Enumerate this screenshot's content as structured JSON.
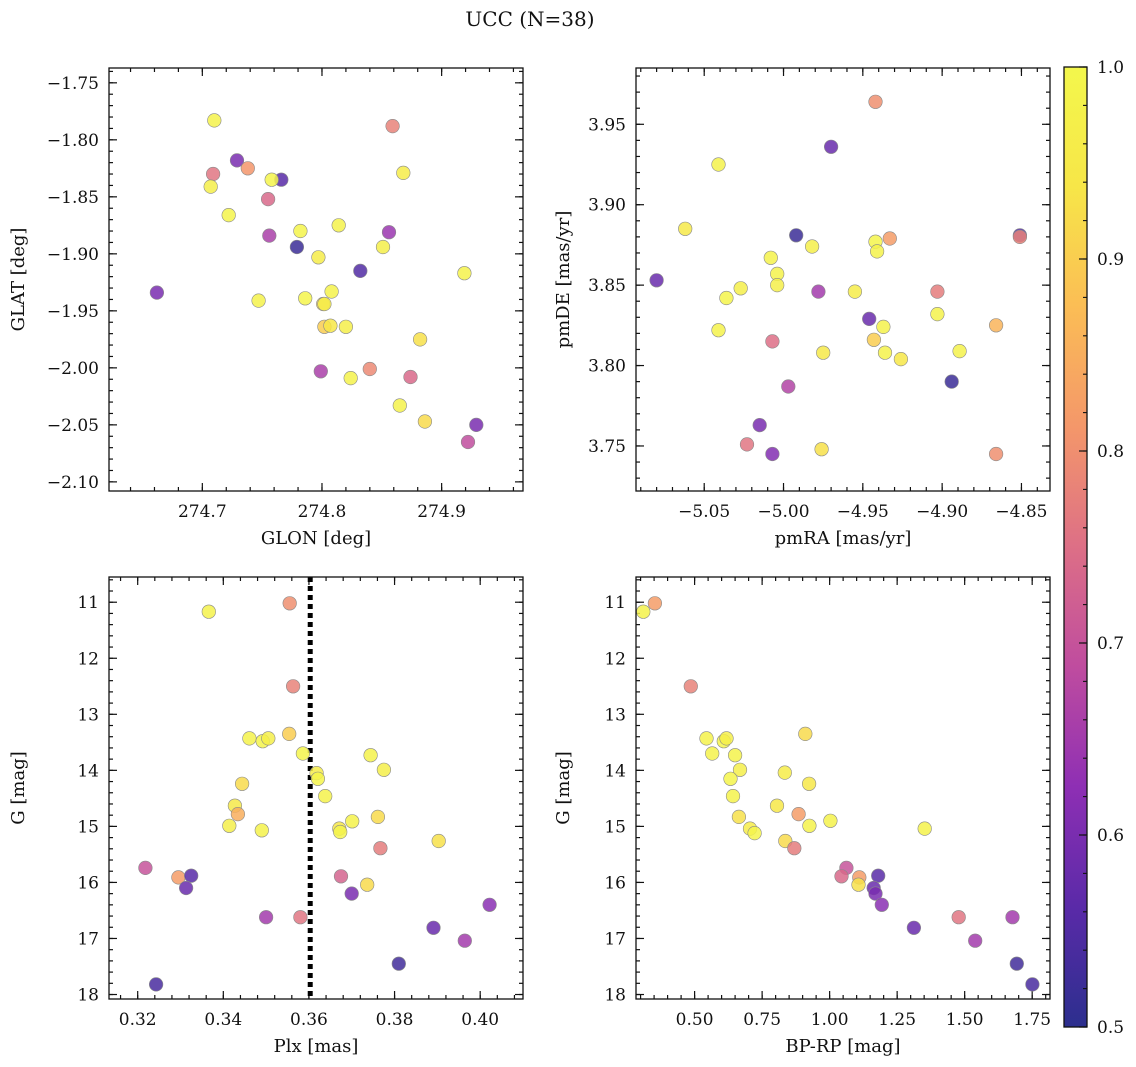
{
  "figure": {
    "title": "UCC (N=38)"
  },
  "colorbar": {
    "range": [
      0.5,
      1.0
    ],
    "ticks": [
      0.5,
      0.6,
      0.7,
      0.8,
      0.9,
      1.0
    ],
    "tick_labels": [
      "0.5",
      "0.6",
      "0.7",
      "0.8",
      "0.9",
      "1.0"
    ],
    "colormap": "plasma",
    "colormap_stops": [
      "#2c2f8e",
      "#5a2aa8",
      "#8e2fb4",
      "#bf4c9f",
      "#dd6f86",
      "#f4976a",
      "#fbbd55",
      "#f7e648",
      "#f3f74c"
    ],
    "marker_edge": "#8a8a8a",
    "marker_alpha": 0.85
  },
  "chart_data": [
    {
      "type": "scatter",
      "name": "glon-glat",
      "title": "",
      "xlabel": "GLON [deg]",
      "ylabel": "GLAT [deg]",
      "xlim": [
        274.622,
        274.968
      ],
      "ylim": [
        -2.108,
        -1.737
      ],
      "y_inverted": false,
      "xticks": [
        274.7,
        274.8,
        274.9
      ],
      "xtick_labels": [
        "274.7",
        "274.8",
        "274.9"
      ],
      "yticks": [
        -1.75,
        -1.8,
        -1.85,
        -1.9,
        -1.95,
        -2.0,
        -2.05,
        -2.1
      ],
      "ytick_labels": [
        "−1.75",
        "−1.80",
        "−1.85",
        "−1.90",
        "−1.95",
        "−2.00",
        "−2.05",
        "−2.10"
      ],
      "vline": null,
      "points": [
        {
          "x": 274.71,
          "y": -1.783,
          "c": 0.98
        },
        {
          "x": 274.859,
          "y": -1.788,
          "c": 0.78
        },
        {
          "x": 274.729,
          "y": -1.818,
          "c": 0.6
        },
        {
          "x": 274.738,
          "y": -1.825,
          "c": 0.81
        },
        {
          "x": 274.709,
          "y": -1.83,
          "c": 0.76
        },
        {
          "x": 274.868,
          "y": -1.829,
          "c": 0.96
        },
        {
          "x": 274.766,
          "y": -1.835,
          "c": 0.56
        },
        {
          "x": 274.758,
          "y": -1.835,
          "c": 0.99
        },
        {
          "x": 274.707,
          "y": -1.841,
          "c": 0.97
        },
        {
          "x": 274.755,
          "y": -1.852,
          "c": 0.74
        },
        {
          "x": 274.722,
          "y": -1.866,
          "c": 0.99
        },
        {
          "x": 274.814,
          "y": -1.875,
          "c": 0.98
        },
        {
          "x": 274.782,
          "y": -1.88,
          "c": 0.99
        },
        {
          "x": 274.856,
          "y": -1.881,
          "c": 0.64
        },
        {
          "x": 274.756,
          "y": -1.884,
          "c": 0.66
        },
        {
          "x": 274.779,
          "y": -1.894,
          "c": 0.52
        },
        {
          "x": 274.851,
          "y": -1.894,
          "c": 0.97
        },
        {
          "x": 274.797,
          "y": -1.903,
          "c": 0.96
        },
        {
          "x": 274.832,
          "y": -1.915,
          "c": 0.55
        },
        {
          "x": 274.919,
          "y": -1.917,
          "c": 0.98
        },
        {
          "x": 274.662,
          "y": -1.934,
          "c": 0.6
        },
        {
          "x": 274.808,
          "y": -1.933,
          "c": 0.98
        },
        {
          "x": 274.786,
          "y": -1.939,
          "c": 0.99
        },
        {
          "x": 274.747,
          "y": -1.941,
          "c": 0.98
        },
        {
          "x": 274.801,
          "y": -1.944,
          "c": 0.92
        },
        {
          "x": 274.802,
          "y": -1.944,
          "c": 0.96
        },
        {
          "x": 274.802,
          "y": -1.964,
          "c": 0.9
        },
        {
          "x": 274.807,
          "y": -1.963,
          "c": 0.94
        },
        {
          "x": 274.82,
          "y": -1.964,
          "c": 0.97
        },
        {
          "x": 274.882,
          "y": -1.975,
          "c": 0.93
        },
        {
          "x": 274.84,
          "y": -2.001,
          "c": 0.79
        },
        {
          "x": 274.799,
          "y": -2.003,
          "c": 0.66
        },
        {
          "x": 274.874,
          "y": -2.008,
          "c": 0.74
        },
        {
          "x": 274.824,
          "y": -2.009,
          "c": 0.98
        },
        {
          "x": 274.865,
          "y": -2.033,
          "c": 0.98
        },
        {
          "x": 274.886,
          "y": -2.047,
          "c": 0.92
        },
        {
          "x": 274.929,
          "y": -2.05,
          "c": 0.6
        },
        {
          "x": 274.922,
          "y": -2.065,
          "c": 0.69
        }
      ]
    },
    {
      "type": "scatter",
      "name": "pmra-pmde",
      "title": "",
      "xlabel": "pmRA [mas/yr]",
      "ylabel": "pmDE [mas/yr]",
      "xlim": [
        -5.093,
        -4.832
      ],
      "ylim": [
        3.722,
        3.985
      ],
      "y_inverted": false,
      "xticks": [
        -5.1,
        -5.05,
        -5.0,
        -4.95,
        -4.9,
        -4.85
      ],
      "xtick_labels": [
        "−5.10",
        "−5.05",
        "−5.00",
        "−4.95",
        "−4.90",
        "−4.85"
      ],
      "yticks": [
        3.75,
        3.8,
        3.85,
        3.9,
        3.95
      ],
      "ytick_labels": [
        "3.75",
        "3.80",
        "3.85",
        "3.90",
        "3.95"
      ],
      "vline": null,
      "points": [
        {
          "x": -4.942,
          "y": 3.964,
          "c": 0.8
        },
        {
          "x": -4.97,
          "y": 3.936,
          "c": 0.58
        },
        {
          "x": -5.041,
          "y": 3.925,
          "c": 0.98
        },
        {
          "x": -5.062,
          "y": 3.885,
          "c": 0.95
        },
        {
          "x": -4.992,
          "y": 3.881,
          "c": 0.52
        },
        {
          "x": -4.933,
          "y": 3.879,
          "c": 0.82
        },
        {
          "x": -4.851,
          "y": 3.881,
          "c": 0.55
        },
        {
          "x": -4.851,
          "y": 3.88,
          "c": 0.78
        },
        {
          "x": -4.942,
          "y": 3.877,
          "c": 0.99
        },
        {
          "x": -4.982,
          "y": 3.874,
          "c": 0.97
        },
        {
          "x": -4.941,
          "y": 3.871,
          "c": 0.98
        },
        {
          "x": -5.008,
          "y": 3.867,
          "c": 0.98
        },
        {
          "x": -5.004,
          "y": 3.857,
          "c": 0.98
        },
        {
          "x": -5.08,
          "y": 3.853,
          "c": 0.58
        },
        {
          "x": -5.004,
          "y": 3.85,
          "c": 0.97
        },
        {
          "x": -5.027,
          "y": 3.848,
          "c": 0.97
        },
        {
          "x": -4.955,
          "y": 3.846,
          "c": 0.96
        },
        {
          "x": -4.978,
          "y": 3.846,
          "c": 0.65
        },
        {
          "x": -4.903,
          "y": 3.846,
          "c": 0.77
        },
        {
          "x": -5.036,
          "y": 3.842,
          "c": 0.99
        },
        {
          "x": -4.903,
          "y": 3.832,
          "c": 0.98
        },
        {
          "x": -4.946,
          "y": 3.829,
          "c": 0.58
        },
        {
          "x": -4.866,
          "y": 3.825,
          "c": 0.86
        },
        {
          "x": -5.041,
          "y": 3.822,
          "c": 0.98
        },
        {
          "x": -4.937,
          "y": 3.824,
          "c": 0.98
        },
        {
          "x": -4.943,
          "y": 3.816,
          "c": 0.9
        },
        {
          "x": -5.007,
          "y": 3.815,
          "c": 0.75
        },
        {
          "x": -4.889,
          "y": 3.809,
          "c": 0.98
        },
        {
          "x": -4.975,
          "y": 3.808,
          "c": 0.95
        },
        {
          "x": -4.936,
          "y": 3.808,
          "c": 0.98
        },
        {
          "x": -4.926,
          "y": 3.804,
          "c": 0.94
        },
        {
          "x": -4.894,
          "y": 3.79,
          "c": 0.52
        },
        {
          "x": -4.997,
          "y": 3.787,
          "c": 0.67
        },
        {
          "x": -5.015,
          "y": 3.763,
          "c": 0.6
        },
        {
          "x": -5.023,
          "y": 3.751,
          "c": 0.76
        },
        {
          "x": -4.976,
          "y": 3.748,
          "c": 0.93
        },
        {
          "x": -5.007,
          "y": 3.745,
          "c": 0.61
        },
        {
          "x": -4.866,
          "y": 3.745,
          "c": 0.8
        }
      ]
    },
    {
      "type": "scatter",
      "name": "plx-g",
      "title": "",
      "xlabel": "Plx [mas]",
      "ylabel": "G [mag]",
      "xlim": [
        0.3133,
        0.41
      ],
      "ylim": [
        18.08,
        10.55
      ],
      "y_inverted": true,
      "xticks": [
        0.32,
        0.34,
        0.36,
        0.38,
        0.4
      ],
      "xtick_labels": [
        "0.32",
        "0.34",
        "0.36",
        "0.38",
        "0.40"
      ],
      "yticks": [
        11,
        12,
        13,
        14,
        15,
        16,
        17,
        18
      ],
      "ytick_labels": [
        "11",
        "12",
        "13",
        "14",
        "15",
        "16",
        "17",
        "18"
      ],
      "vline": 0.3603,
      "points": [
        {
          "x": 0.3555,
          "y": 11.02,
          "c": 0.8
        },
        {
          "x": 0.3366,
          "y": 11.17,
          "c": 0.98
        },
        {
          "x": 0.3563,
          "y": 12.5,
          "c": 0.78
        },
        {
          "x": 0.3554,
          "y": 13.35,
          "c": 0.9
        },
        {
          "x": 0.3461,
          "y": 13.43,
          "c": 0.98
        },
        {
          "x": 0.3492,
          "y": 13.48,
          "c": 0.99
        },
        {
          "x": 0.3505,
          "y": 13.43,
          "c": 0.97
        },
        {
          "x": 0.3586,
          "y": 13.7,
          "c": 0.99
        },
        {
          "x": 0.3744,
          "y": 13.73,
          "c": 0.98
        },
        {
          "x": 0.3775,
          "y": 13.99,
          "c": 0.97
        },
        {
          "x": 0.3618,
          "y": 14.05,
          "c": 0.96
        },
        {
          "x": 0.3621,
          "y": 14.15,
          "c": 0.99
        },
        {
          "x": 0.3444,
          "y": 14.24,
          "c": 0.92
        },
        {
          "x": 0.3638,
          "y": 14.46,
          "c": 0.98
        },
        {
          "x": 0.3427,
          "y": 14.63,
          "c": 0.95
        },
        {
          "x": 0.3434,
          "y": 14.78,
          "c": 0.85
        },
        {
          "x": 0.3761,
          "y": 14.83,
          "c": 0.92
        },
        {
          "x": 0.3701,
          "y": 14.91,
          "c": 0.98
        },
        {
          "x": 0.3414,
          "y": 14.99,
          "c": 0.97
        },
        {
          "x": 0.349,
          "y": 15.07,
          "c": 0.98
        },
        {
          "x": 0.3671,
          "y": 15.04,
          "c": 0.94
        },
        {
          "x": 0.3673,
          "y": 15.1,
          "c": 0.99
        },
        {
          "x": 0.3903,
          "y": 15.26,
          "c": 0.93
        },
        {
          "x": 0.3767,
          "y": 15.39,
          "c": 0.77
        },
        {
          "x": 0.3218,
          "y": 15.74,
          "c": 0.7
        },
        {
          "x": 0.3295,
          "y": 15.91,
          "c": 0.82
        },
        {
          "x": 0.3325,
          "y": 15.88,
          "c": 0.56
        },
        {
          "x": 0.3675,
          "y": 15.89,
          "c": 0.73
        },
        {
          "x": 0.3313,
          "y": 16.1,
          "c": 0.58
        },
        {
          "x": 0.3736,
          "y": 16.04,
          "c": 0.92
        },
        {
          "x": 0.37,
          "y": 16.2,
          "c": 0.6
        },
        {
          "x": 0.4022,
          "y": 16.4,
          "c": 0.62
        },
        {
          "x": 0.35,
          "y": 16.62,
          "c": 0.65
        },
        {
          "x": 0.358,
          "y": 16.62,
          "c": 0.76
        },
        {
          "x": 0.3891,
          "y": 16.81,
          "c": 0.58
        },
        {
          "x": 0.3964,
          "y": 17.04,
          "c": 0.65
        },
        {
          "x": 0.381,
          "y": 17.45,
          "c": 0.53
        },
        {
          "x": 0.3243,
          "y": 17.82,
          "c": 0.54
        }
      ]
    },
    {
      "type": "scatter",
      "name": "bprp-g",
      "title": "",
      "xlabel": "BP-RP [mag]",
      "ylabel": "G [mag]",
      "xlim": [
        0.283,
        1.816
      ],
      "ylim": [
        18.08,
        10.55
      ],
      "y_inverted": true,
      "xticks": [
        0.5,
        0.75,
        1.0,
        1.25,
        1.5,
        1.75
      ],
      "xtick_labels": [
        "0.50",
        "0.75",
        "1.00",
        "1.25",
        "1.50",
        "1.75"
      ],
      "yticks": [
        11,
        12,
        13,
        14,
        15,
        16,
        17,
        18
      ],
      "ytick_labels": [
        "11",
        "12",
        "13",
        "14",
        "15",
        "16",
        "17",
        "18"
      ],
      "vline": null,
      "points": [
        {
          "x": 0.31,
          "y": 11.17,
          "c": 0.98
        },
        {
          "x": 0.353,
          "y": 11.02,
          "c": 0.82
        },
        {
          "x": 0.486,
          "y": 12.5,
          "c": 0.78
        },
        {
          "x": 0.544,
          "y": 13.43,
          "c": 0.98
        },
        {
          "x": 0.608,
          "y": 13.48,
          "c": 0.99
        },
        {
          "x": 0.618,
          "y": 13.43,
          "c": 0.97
        },
        {
          "x": 0.565,
          "y": 13.7,
          "c": 0.98
        },
        {
          "x": 0.65,
          "y": 13.73,
          "c": 0.98
        },
        {
          "x": 0.91,
          "y": 13.35,
          "c": 0.92
        },
        {
          "x": 0.668,
          "y": 13.99,
          "c": 0.97
        },
        {
          "x": 0.834,
          "y": 14.04,
          "c": 0.96
        },
        {
          "x": 0.633,
          "y": 14.15,
          "c": 0.99
        },
        {
          "x": 0.924,
          "y": 14.24,
          "c": 0.94
        },
        {
          "x": 0.642,
          "y": 14.46,
          "c": 0.98
        },
        {
          "x": 0.805,
          "y": 14.63,
          "c": 0.94
        },
        {
          "x": 0.885,
          "y": 14.78,
          "c": 0.82
        },
        {
          "x": 0.664,
          "y": 14.83,
          "c": 0.93
        },
        {
          "x": 1.003,
          "y": 14.9,
          "c": 0.98
        },
        {
          "x": 0.925,
          "y": 14.99,
          "c": 0.98
        },
        {
          "x": 0.705,
          "y": 15.04,
          "c": 0.96
        },
        {
          "x": 0.722,
          "y": 15.12,
          "c": 0.99
        },
        {
          "x": 1.352,
          "y": 15.04,
          "c": 0.98
        },
        {
          "x": 0.836,
          "y": 15.26,
          "c": 0.92
        },
        {
          "x": 0.869,
          "y": 15.39,
          "c": 0.77
        },
        {
          "x": 1.062,
          "y": 15.74,
          "c": 0.7
        },
        {
          "x": 1.044,
          "y": 15.89,
          "c": 0.74
        },
        {
          "x": 1.11,
          "y": 15.91,
          "c": 0.82
        },
        {
          "x": 1.18,
          "y": 15.88,
          "c": 0.56
        },
        {
          "x": 1.107,
          "y": 16.04,
          "c": 0.93
        },
        {
          "x": 1.163,
          "y": 16.1,
          "c": 0.58
        },
        {
          "x": 1.17,
          "y": 16.2,
          "c": 0.6
        },
        {
          "x": 1.193,
          "y": 16.4,
          "c": 0.62
        },
        {
          "x": 1.478,
          "y": 16.62,
          "c": 0.76
        },
        {
          "x": 1.677,
          "y": 16.62,
          "c": 0.65
        },
        {
          "x": 1.312,
          "y": 16.81,
          "c": 0.58
        },
        {
          "x": 1.539,
          "y": 17.04,
          "c": 0.65
        },
        {
          "x": 1.693,
          "y": 17.45,
          "c": 0.53
        },
        {
          "x": 1.751,
          "y": 17.82,
          "c": 0.54
        }
      ]
    }
  ]
}
